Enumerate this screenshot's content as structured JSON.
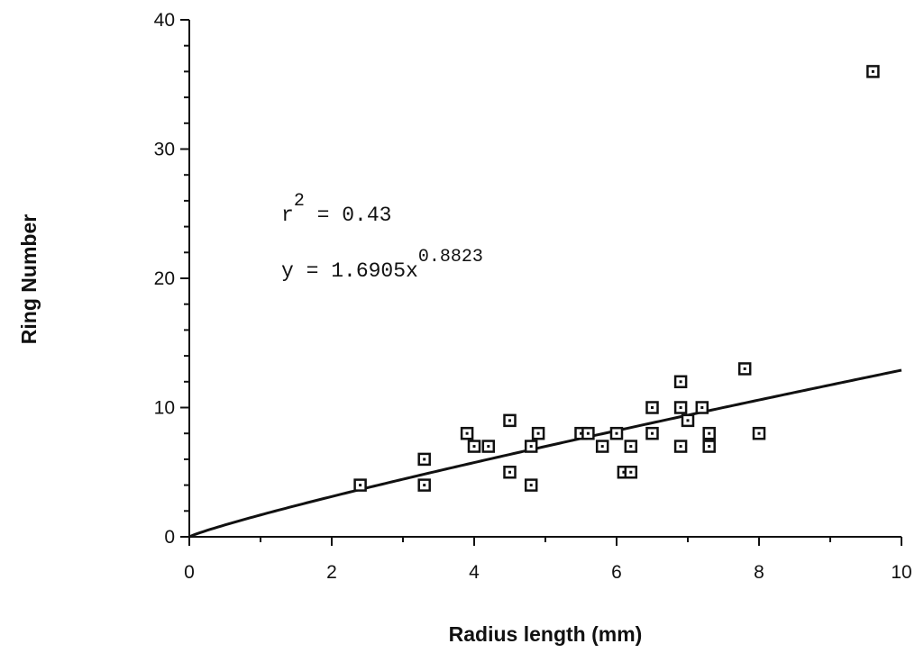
{
  "chart_data": {
    "type": "scatter",
    "xlabel": "Radius length (mm)",
    "ylabel": "Ring Number",
    "xlim": [
      0,
      10
    ],
    "ylim": [
      0,
      40
    ],
    "x_ticks": [
      "0",
      "2",
      "4",
      "6",
      "8",
      "10"
    ],
    "y_ticks": [
      "0",
      "10",
      "20",
      "30",
      "40"
    ],
    "grid": false,
    "points": [
      {
        "x": 2.4,
        "y": 4
      },
      {
        "x": 3.3,
        "y": 4
      },
      {
        "x": 3.3,
        "y": 6
      },
      {
        "x": 3.9,
        "y": 8
      },
      {
        "x": 4.0,
        "y": 7
      },
      {
        "x": 4.2,
        "y": 7
      },
      {
        "x": 4.5,
        "y": 9
      },
      {
        "x": 4.5,
        "y": 5
      },
      {
        "x": 4.8,
        "y": 7
      },
      {
        "x": 4.8,
        "y": 4
      },
      {
        "x": 4.9,
        "y": 8
      },
      {
        "x": 5.5,
        "y": 8
      },
      {
        "x": 5.6,
        "y": 8
      },
      {
        "x": 5.8,
        "y": 7
      },
      {
        "x": 6.0,
        "y": 8
      },
      {
        "x": 6.1,
        "y": 5
      },
      {
        "x": 6.2,
        "y": 5
      },
      {
        "x": 6.2,
        "y": 7
      },
      {
        "x": 6.5,
        "y": 10
      },
      {
        "x": 6.5,
        "y": 8
      },
      {
        "x": 6.9,
        "y": 12
      },
      {
        "x": 6.9,
        "y": 10
      },
      {
        "x": 6.9,
        "y": 7
      },
      {
        "x": 7.0,
        "y": 9
      },
      {
        "x": 7.2,
        "y": 10
      },
      {
        "x": 7.3,
        "y": 8
      },
      {
        "x": 7.3,
        "y": 7
      },
      {
        "x": 7.8,
        "y": 13
      },
      {
        "x": 8.0,
        "y": 8
      },
      {
        "x": 9.6,
        "y": 36
      }
    ],
    "fit": {
      "a": 1.6905,
      "b": 0.8823
    },
    "annotations": {
      "r2_base": "r",
      "r2_sup": "2",
      "r2_rest": " = 0.43",
      "eq_base": "y = 1.6905x",
      "eq_sup": "0.8823"
    }
  }
}
